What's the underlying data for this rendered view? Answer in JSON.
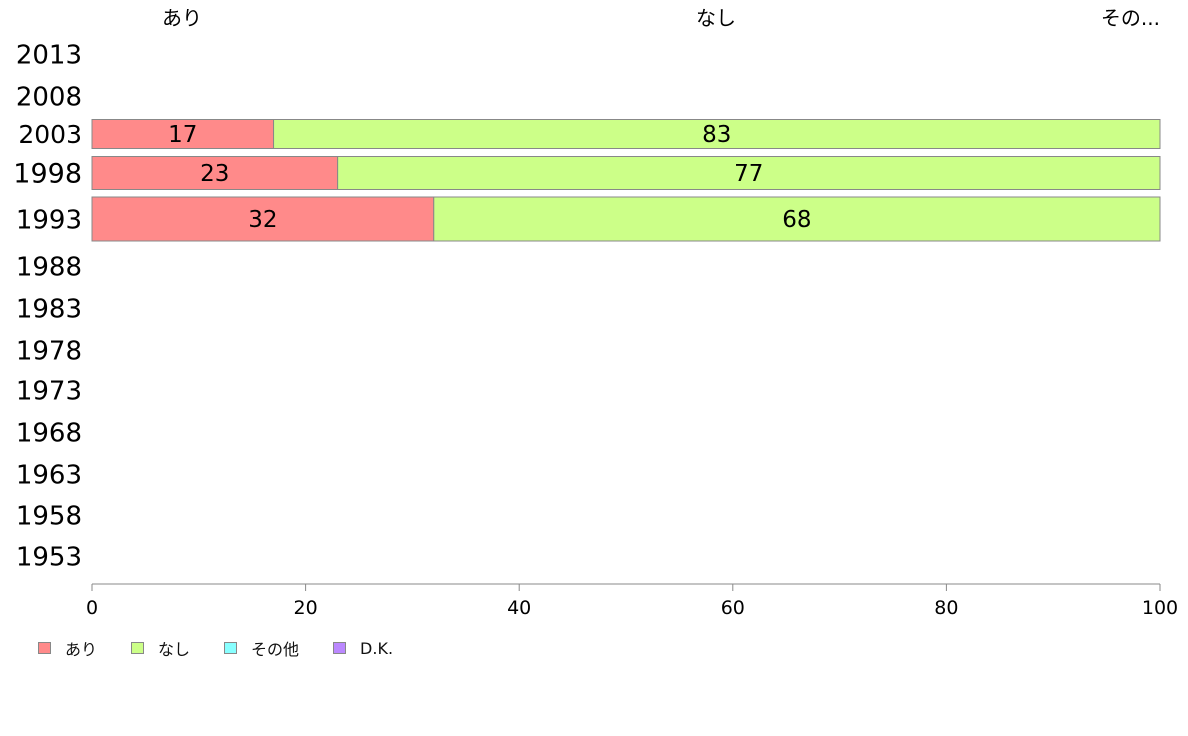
{
  "chart_data": {
    "type": "bar",
    "orientation": "horizontal",
    "stacked": true,
    "title": "",
    "xlabel": "",
    "ylabel": "",
    "xlim": [
      0,
      100
    ],
    "x_ticks": [
      "0",
      "20",
      "40",
      "60",
      "80",
      "100"
    ],
    "categories": [
      "2013",
      "2008",
      "2003",
      "1998",
      "1993",
      "1988",
      "1983",
      "1978",
      "1973",
      "1968",
      "1963",
      "1958",
      "1953"
    ],
    "column_headers": [
      "あり",
      "なし",
      "その..."
    ],
    "series": [
      {
        "name": "あり",
        "color": "#ff8a8a",
        "values": [
          null,
          null,
          17,
          23,
          32,
          null,
          null,
          null,
          null,
          null,
          null,
          null,
          null
        ]
      },
      {
        "name": "なし",
        "color": "#ccff88",
        "values": [
          null,
          null,
          83,
          77,
          68,
          null,
          null,
          null,
          null,
          null,
          null,
          null,
          null
        ]
      },
      {
        "name": "その他",
        "color": "#88ffff",
        "values": [
          null,
          null,
          0,
          0,
          0,
          null,
          null,
          null,
          null,
          null,
          null,
          null,
          null
        ]
      },
      {
        "name": "D.K.",
        "color": "#bb88ff",
        "values": [
          null,
          null,
          0,
          0,
          0,
          null,
          null,
          null,
          null,
          null,
          null,
          null,
          null
        ]
      }
    ],
    "legend_position": "bottom-left",
    "grid": false
  }
}
